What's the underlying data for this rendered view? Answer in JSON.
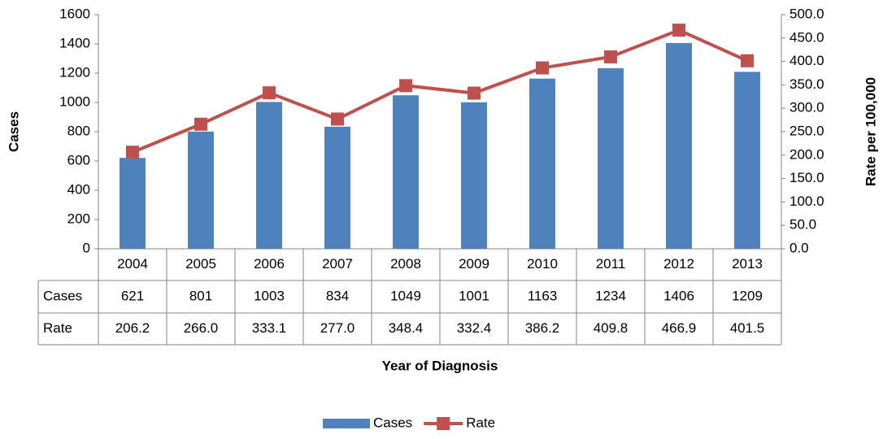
{
  "chart_data": {
    "type": "bar-line",
    "categories": [
      "2004",
      "2005",
      "2006",
      "2007",
      "2008",
      "2009",
      "2010",
      "2011",
      "2012",
      "2013"
    ],
    "series": [
      {
        "name": "Cases",
        "type": "bar",
        "color": "#4f81bd",
        "values": [
          621,
          801,
          1003,
          834,
          1049,
          1001,
          1163,
          1234,
          1406,
          1209
        ]
      },
      {
        "name": "Rate",
        "type": "line",
        "axis": "y2",
        "color": "#c0504d",
        "values": [
          206.2,
          266.0,
          333.1,
          277.0,
          348.4,
          332.4,
          386.2,
          409.8,
          466.9,
          401.5
        ],
        "value_labels": [
          "206.2",
          "266.0",
          "333.1",
          "277.0",
          "348.4",
          "332.4",
          "386.2",
          "409.8",
          "466.9",
          "401.5"
        ]
      }
    ],
    "ylabel": "Cases",
    "y2label": "Rate per 100,000",
    "xlabel": "Year of Diagnosis",
    "ylim": [
      0,
      1600
    ],
    "yticks": [
      0,
      200,
      400,
      600,
      800,
      1000,
      1200,
      1400,
      1600
    ],
    "y2lim": [
      0,
      500
    ],
    "y2ticks": [
      {
        "value": 0,
        "label": "0.0"
      },
      {
        "value": 50,
        "label": "50.0"
      },
      {
        "value": 100,
        "label": "100.0"
      },
      {
        "value": 150,
        "label": "150.0"
      },
      {
        "value": 200,
        "label": "200.0"
      },
      {
        "value": 250,
        "label": "250.0"
      },
      {
        "value": 300,
        "label": "300.0"
      },
      {
        "value": 350,
        "label": "350.0"
      },
      {
        "value": 400,
        "label": "400.0"
      },
      {
        "value": 450,
        "label": "450.0"
      },
      {
        "value": 500,
        "label": "500.0"
      }
    ],
    "legend": "bottom",
    "grid": false,
    "data_table": true
  }
}
